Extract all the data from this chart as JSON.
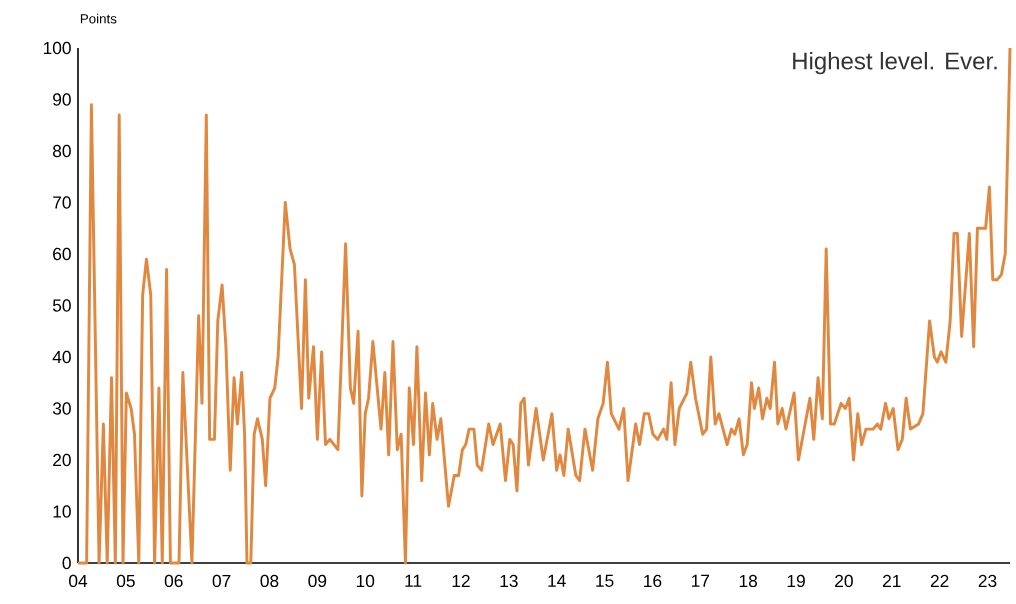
{
  "chart_data": {
    "type": "line",
    "ylabel": "Points",
    "annotations": [
      "Highest level. Ever."
    ],
    "xlim": [
      2004,
      2023.47
    ],
    "ylim": [
      0,
      100
    ],
    "xticks": [
      {
        "value": 2004,
        "label": "04"
      },
      {
        "value": 2005,
        "label": "05"
      },
      {
        "value": 2006,
        "label": "06"
      },
      {
        "value": 2007,
        "label": "07"
      },
      {
        "value": 2008,
        "label": "08"
      },
      {
        "value": 2009,
        "label": "09"
      },
      {
        "value": 2010,
        "label": "10"
      },
      {
        "value": 2011,
        "label": "11"
      },
      {
        "value": 2012,
        "label": "12"
      },
      {
        "value": 2013,
        "label": "13"
      },
      {
        "value": 2014,
        "label": "14"
      },
      {
        "value": 2015,
        "label": "15"
      },
      {
        "value": 2016,
        "label": "16"
      },
      {
        "value": 2017,
        "label": "17"
      },
      {
        "value": 2018,
        "label": "18"
      },
      {
        "value": 2019,
        "label": "19"
      },
      {
        "value": 2020,
        "label": "20"
      },
      {
        "value": 2021,
        "label": "21"
      },
      {
        "value": 2022,
        "label": "22"
      },
      {
        "value": 2023,
        "label": "23"
      }
    ],
    "yticks": [
      0,
      10,
      20,
      30,
      40,
      50,
      60,
      70,
      80,
      90,
      100
    ],
    "marker": "none",
    "line_style": "solid",
    "x": [
      2004.0,
      2004.18,
      2004.28,
      2004.44,
      2004.53,
      2004.61,
      2004.7,
      2004.78,
      2004.86,
      2004.94,
      2005.01,
      2005.11,
      2005.18,
      2005.27,
      2005.35,
      2005.43,
      2005.52,
      2005.6,
      2005.69,
      2005.76,
      2005.85,
      2005.93,
      2006.11,
      2006.19,
      2006.38,
      2006.52,
      2006.59,
      2006.68,
      2006.75,
      2006.85,
      2006.92,
      2007.01,
      2007.09,
      2007.18,
      2007.26,
      2007.33,
      2007.42,
      2007.48,
      2007.53,
      2007.61,
      2007.68,
      2007.75,
      2007.85,
      2007.92,
      2008.01,
      2008.11,
      2008.18,
      2008.33,
      2008.43,
      2008.52,
      2008.67,
      2008.75,
      2008.82,
      2008.92,
      2009.0,
      2009.09,
      2009.17,
      2009.26,
      2009.43,
      2009.59,
      2009.69,
      2009.76,
      2009.85,
      2009.93,
      2010.0,
      2010.07,
      2010.16,
      2010.33,
      2010.41,
      2010.49,
      2010.58,
      2010.67,
      2010.75,
      2010.84,
      2010.92,
      2011.01,
      2011.08,
      2011.18,
      2011.26,
      2011.34,
      2011.41,
      2011.5,
      2011.58,
      2011.74,
      2011.86,
      2011.95,
      2012.03,
      2012.1,
      2012.17,
      2012.27,
      2012.34,
      2012.43,
      2012.58,
      2012.67,
      2012.82,
      2012.93,
      2013.02,
      2013.09,
      2013.17,
      2013.25,
      2013.32,
      2013.41,
      2013.57,
      2013.72,
      2013.9,
      2014.0,
      2014.07,
      2014.15,
      2014.24,
      2014.4,
      2014.48,
      2014.59,
      2014.75,
      2014.86,
      2014.97,
      2015.06,
      2015.14,
      2015.3,
      2015.4,
      2015.49,
      2015.65,
      2015.73,
      2015.83,
      2015.92,
      2016.01,
      2016.11,
      2016.23,
      2016.3,
      2016.39,
      2016.47,
      2016.56,
      2016.72,
      2016.8,
      2016.9,
      2017.05,
      2017.13,
      2017.22,
      2017.31,
      2017.39,
      2017.56,
      2017.65,
      2017.72,
      2017.81,
      2017.9,
      2017.98,
      2018.07,
      2018.13,
      2018.22,
      2018.3,
      2018.39,
      2018.46,
      2018.55,
      2018.62,
      2018.71,
      2018.79,
      2018.96,
      2019.05,
      2019.29,
      2019.37,
      2019.46,
      2019.55,
      2019.63,
      2019.72,
      2019.8,
      2019.94,
      2020.03,
      2020.11,
      2020.2,
      2020.29,
      2020.37,
      2020.46,
      2020.61,
      2020.7,
      2020.77,
      2020.87,
      2020.94,
      2021.03,
      2021.13,
      2021.22,
      2021.3,
      2021.39,
      2021.56,
      2021.65,
      2021.79,
      2021.89,
      2021.95,
      2022.03,
      2022.13,
      2022.22,
      2022.3,
      2022.37,
      2022.46,
      2022.62,
      2022.71,
      2022.79,
      2022.88,
      2022.96,
      2023.04,
      2023.11,
      2023.2,
      2023.29,
      2023.37,
      2023.47
    ],
    "series": [
      {
        "color": "#e0883f",
        "values": [
          0,
          0,
          89,
          0,
          27,
          0,
          36,
          0,
          87,
          0,
          33,
          30,
          25,
          0,
          52,
          59,
          52,
          0,
          34,
          0,
          57,
          0,
          0,
          37,
          0,
          48,
          31,
          87,
          24,
          24,
          47,
          54,
          42,
          18,
          36,
          27,
          37,
          25,
          0,
          0,
          25,
          28,
          24,
          15,
          32,
          34,
          40,
          70,
          61,
          58,
          30,
          55,
          32,
          42,
          24,
          41,
          23,
          24,
          22,
          62,
          34,
          31,
          45,
          13,
          29,
          32,
          43,
          26,
          37,
          21,
          43,
          22,
          25,
          0,
          34,
          23,
          42,
          16,
          33,
          21,
          31,
          24,
          28,
          11,
          17,
          17,
          22,
          23,
          26,
          26,
          19,
          18,
          27,
          23,
          27,
          16,
          24,
          23,
          14,
          31,
          32,
          19,
          30,
          20,
          29,
          18,
          21,
          17,
          26,
          17,
          16,
          26,
          18,
          28,
          31,
          39,
          29,
          26,
          30,
          16,
          27,
          23,
          29,
          29,
          25,
          24,
          26,
          24,
          35,
          23,
          30,
          33,
          39,
          32,
          25,
          26,
          40,
          27,
          29,
          23,
          26,
          25,
          28,
          21,
          23,
          35,
          30,
          34,
          28,
          32,
          30,
          39,
          27,
          30,
          26,
          33,
          20,
          32,
          24,
          36,
          28,
          61,
          27,
          27,
          31,
          30,
          32,
          20,
          29,
          23,
          26,
          26,
          27,
          26,
          31,
          28,
          30,
          22,
          24,
          32,
          26,
          27,
          29,
          47,
          40,
          39,
          41,
          39,
          47,
          64,
          64,
          44,
          64,
          42,
          65,
          65,
          65,
          73,
          55,
          55,
          56,
          60,
          100
        ]
      }
    ]
  }
}
